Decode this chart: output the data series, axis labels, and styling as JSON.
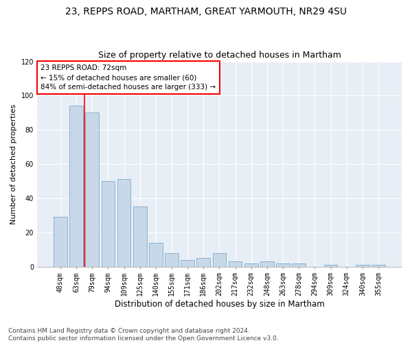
{
  "title1": "23, REPPS ROAD, MARTHAM, GREAT YARMOUTH, NR29 4SU",
  "title2": "Size of property relative to detached houses in Martham",
  "xlabel": "Distribution of detached houses by size in Martham",
  "ylabel": "Number of detached properties",
  "categories": [
    "48sqm",
    "63sqm",
    "79sqm",
    "94sqm",
    "109sqm",
    "125sqm",
    "140sqm",
    "155sqm",
    "171sqm",
    "186sqm",
    "202sqm",
    "217sqm",
    "232sqm",
    "248sqm",
    "263sqm",
    "278sqm",
    "294sqm",
    "309sqm",
    "324sqm",
    "340sqm",
    "355sqm"
  ],
  "values": [
    29,
    94,
    90,
    50,
    51,
    35,
    14,
    8,
    4,
    5,
    8,
    3,
    2,
    3,
    2,
    2,
    0,
    1,
    0,
    1,
    1
  ],
  "bar_color": "#c8d8e8",
  "bar_edge_color": "#7aabcf",
  "vline_color": "red",
  "vline_x": 1.5,
  "annotation_text": "23 REPPS ROAD: 72sqm\n← 15% of detached houses are smaller (60)\n84% of semi-detached houses are larger (333) →",
  "annotation_box_color": "white",
  "annotation_box_edge": "red",
  "ylim": [
    0,
    120
  ],
  "yticks": [
    0,
    20,
    40,
    60,
    80,
    100,
    120
  ],
  "plot_bg_color": "#e8eef5",
  "background_color": "white",
  "footer": "Contains HM Land Registry data © Crown copyright and database right 2024.\nContains public sector information licensed under the Open Government Licence v3.0.",
  "title1_fontsize": 10,
  "title2_fontsize": 9,
  "xlabel_fontsize": 8.5,
  "ylabel_fontsize": 8,
  "annot_fontsize": 7.5,
  "footer_fontsize": 6.5,
  "tick_fontsize": 7
}
